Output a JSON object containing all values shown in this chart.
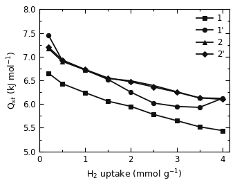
{
  "series": [
    {
      "key": "1",
      "x": [
        0.2,
        0.5,
        1.0,
        1.5,
        2.0,
        2.5,
        3.0,
        3.5,
        4.0
      ],
      "y": [
        6.65,
        6.43,
        6.24,
        6.06,
        5.95,
        5.78,
        5.65,
        5.52,
        5.44
      ],
      "marker": "s",
      "label": "1"
    },
    {
      "key": "1prime",
      "x": [
        0.2,
        0.5,
        1.0,
        1.5,
        2.0,
        2.5,
        3.0,
        3.5,
        4.0
      ],
      "y": [
        7.45,
        6.92,
        6.72,
        6.52,
        6.25,
        6.02,
        5.95,
        5.93,
        6.12
      ],
      "marker": "o",
      "label": "1'"
    },
    {
      "key": "2",
      "x": [
        0.2,
        0.5,
        1.0,
        1.5,
        2.0,
        2.5,
        3.0,
        3.5,
        4.0
      ],
      "y": [
        7.17,
        6.9,
        6.72,
        6.54,
        6.49,
        6.39,
        6.26,
        6.13,
        6.12
      ],
      "marker": "^",
      "label": "2"
    },
    {
      "key": "2prime",
      "x": [
        0.2,
        0.5,
        1.0,
        1.5,
        2.0,
        2.5,
        3.0,
        3.5,
        4.0
      ],
      "y": [
        7.2,
        6.93,
        6.73,
        6.55,
        6.47,
        6.36,
        6.25,
        6.13,
        6.1
      ],
      "marker": "D",
      "label": "2'"
    }
  ],
  "xlim": [
    0,
    4.15
  ],
  "ylim": [
    5.0,
    8.0
  ],
  "xticks": [
    0,
    1,
    2,
    3,
    4
  ],
  "yticks": [
    5.0,
    5.5,
    6.0,
    6.5,
    7.0,
    7.5,
    8.0
  ],
  "xlabel": "H$_2$ uptake (mmol g$^{-1}$)",
  "ylabel": "Q$_{st}$ (kJ mol$^{-1}$)",
  "line_color": "#111111",
  "marker_size": 4.5,
  "linewidth": 1.3,
  "legend_fontsize": 8.5,
  "axis_label_fontsize": 9,
  "tick_fontsize": 8.5,
  "figsize": [
    3.4,
    2.7
  ],
  "dpi": 100
}
